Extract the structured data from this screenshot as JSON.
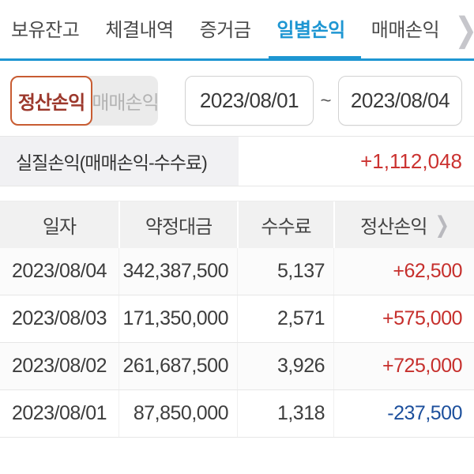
{
  "tabs": {
    "items": [
      {
        "label": "보유잔고",
        "active": false
      },
      {
        "label": "체결내역",
        "active": false
      },
      {
        "label": "증거금",
        "active": false
      },
      {
        "label": "일별손익",
        "active": true
      },
      {
        "label": "매매손익",
        "active": false
      }
    ],
    "more_icon": "❯"
  },
  "filters": {
    "profit_type_selected": "정산손익",
    "profit_type_unselected": "매매손익",
    "date_from": "2023/08/01",
    "date_separator": "~",
    "date_to": "2023/08/04"
  },
  "summary": {
    "label": "실질손익(매매손익-수수료)",
    "value": "+1,112,048"
  },
  "table": {
    "headers": [
      "일자",
      "약정대금",
      "수수료",
      "정산손익"
    ],
    "header_chevron": "❯",
    "rows": [
      {
        "date": "2023/08/04",
        "amount": "342,387,500",
        "fee": "5,137",
        "profit": "+62,500",
        "profit_sign": "positive"
      },
      {
        "date": "2023/08/03",
        "amount": "171,350,000",
        "fee": "2,571",
        "profit": "+575,000",
        "profit_sign": "positive"
      },
      {
        "date": "2023/08/02",
        "amount": "261,687,500",
        "fee": "3,926",
        "profit": "+725,000",
        "profit_sign": "positive"
      },
      {
        "date": "2023/08/01",
        "amount": "87,850,000",
        "fee": "1,318",
        "profit": "-237,500",
        "profit_sign": "negative"
      }
    ]
  },
  "colors": {
    "accent_blue": "#1e96d2",
    "positive_red": "#c62f2c",
    "negative_blue": "#1c4f9c",
    "selected_border_orange": "#c85c32"
  }
}
